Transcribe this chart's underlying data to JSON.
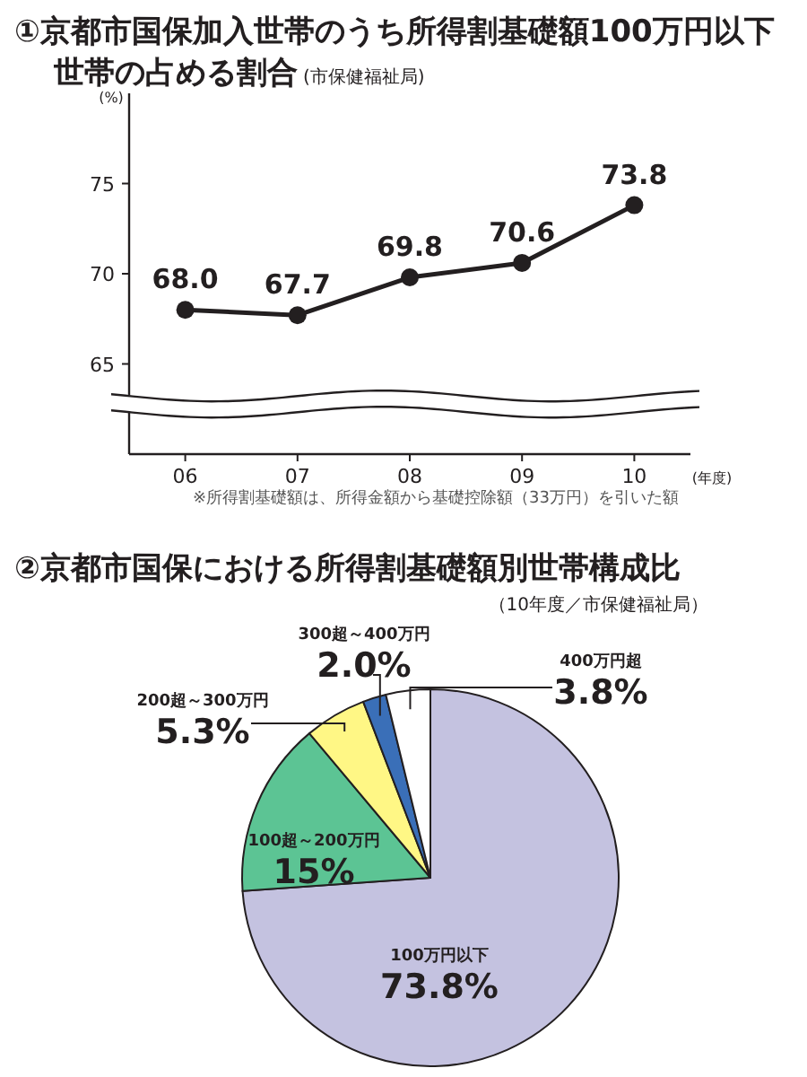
{
  "chart_data": [
    {
      "type": "line",
      "title": "①京都市国保加入世帯のうち所得割基礎額100万円以下世帯の占める割合",
      "subtitle": "(市保健福祉局)",
      "ylabel": "(%)",
      "xlabel": "(年度)",
      "categories": [
        "06",
        "07",
        "08",
        "09",
        "10"
      ],
      "series": [
        {
          "color": "#231f20",
          "values": [
            68.0,
            67.7,
            69.8,
            70.6,
            73.8
          ],
          "value_labels": [
            "68.0",
            "67.7",
            "69.8",
            "70.6",
            "73.8"
          ]
        }
      ],
      "ylim": [
        60,
        80
      ],
      "yticks": [
        65,
        70,
        75
      ],
      "marker": "circle",
      "line_style": "solid",
      "annotations": [
        "※所得割基礎額は、所得金額から基礎控除額（33万円）を引いた額"
      ]
    },
    {
      "type": "pie",
      "title": "②京都市国保における所得割基礎額別世帯構成比",
      "subtitle": "（10年度／市保健福祉局）",
      "categories": [
        "100万円以下",
        "100超～200万円",
        "200超～300万円",
        "300超～400万円",
        "400万円超"
      ],
      "values": [
        73.8,
        15,
        5.3,
        2.0,
        3.8
      ],
      "value_labels": [
        "73.8%",
        "15%",
        "5.3%",
        "2.0%",
        "3.8%"
      ],
      "colors": [
        "#c4c2e0",
        "#5cc494",
        "#fff785",
        "#3a6fb8",
        "#ffffff"
      ]
    }
  ]
}
